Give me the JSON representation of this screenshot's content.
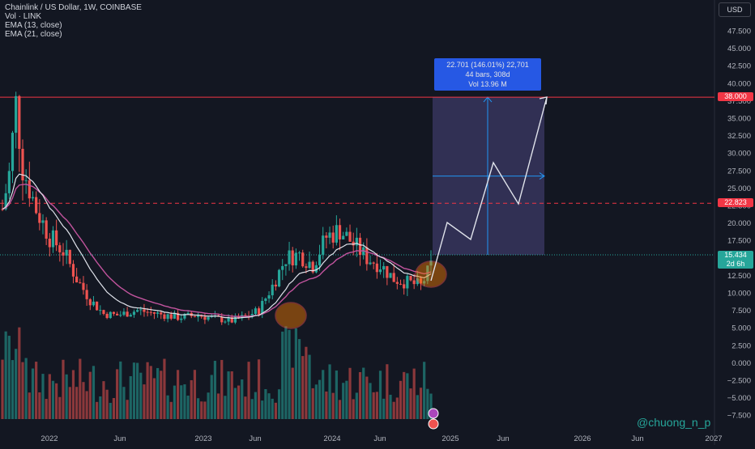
{
  "legend": {
    "title": "Chainlink / US Dollar, 1W, COINBASE",
    "vol": "Vol · LINK",
    "ema13": "EMA (13, close)",
    "ema21": "EMA (21, close)"
  },
  "currency": "USD",
  "info_box": {
    "line1": "22.701 (146.01%) 22,701",
    "line2": "44 bars, 308d",
    "line3": "Vol 13.96 M"
  },
  "price_labels": {
    "target": "38.000",
    "resistance": "22.823",
    "current": "15.434",
    "countdown": "2d 6h"
  },
  "watermark": "@chuong_n_p",
  "colors": {
    "up": "#26a69a",
    "down": "#ef5350",
    "ema13": "#e0e3eb",
    "ema21": "#c2549e",
    "target_line": "#f23645",
    "box_fill": "#3c3a66",
    "info": "#2962ff"
  },
  "chart_data": {
    "type": "candlestick",
    "symbol": "Chainlink / US Dollar",
    "interval": "1W",
    "y_ticks": [
      "47.500",
      "45.000",
      "42.500",
      "40.000",
      "37.500",
      "35.000",
      "32.500",
      "30.000",
      "27.500",
      "25.000",
      "22.500",
      "20.000",
      "17.500",
      "15.000",
      "12.500",
      "10.000",
      "7.500",
      "5.000",
      "2.500",
      "0.000",
      "−2.500",
      "−5.000",
      "−7.500"
    ],
    "x_ticks": [
      "2022",
      "Jun",
      "2023",
      "Jun",
      "2024",
      "Jun",
      "2025",
      "Jun",
      "2026",
      "Jun",
      "2027"
    ],
    "ylim": [
      -7.5,
      47.5
    ],
    "levels": {
      "target": 38.0,
      "resistance": 22.823,
      "current": 15.434
    },
    "projection_path": [
      [
        15.4,
        "2024-11"
      ],
      [
        20.0,
        "2024-12"
      ],
      [
        17.7,
        "2025-02"
      ],
      [
        28.7,
        "2025-04"
      ],
      [
        22.8,
        "2025-06"
      ],
      [
        38.0,
        "2025-09"
      ]
    ],
    "measurement": {
      "change": "22.701",
      "percent": "146.01%",
      "bars": 44,
      "days": 308
    }
  }
}
